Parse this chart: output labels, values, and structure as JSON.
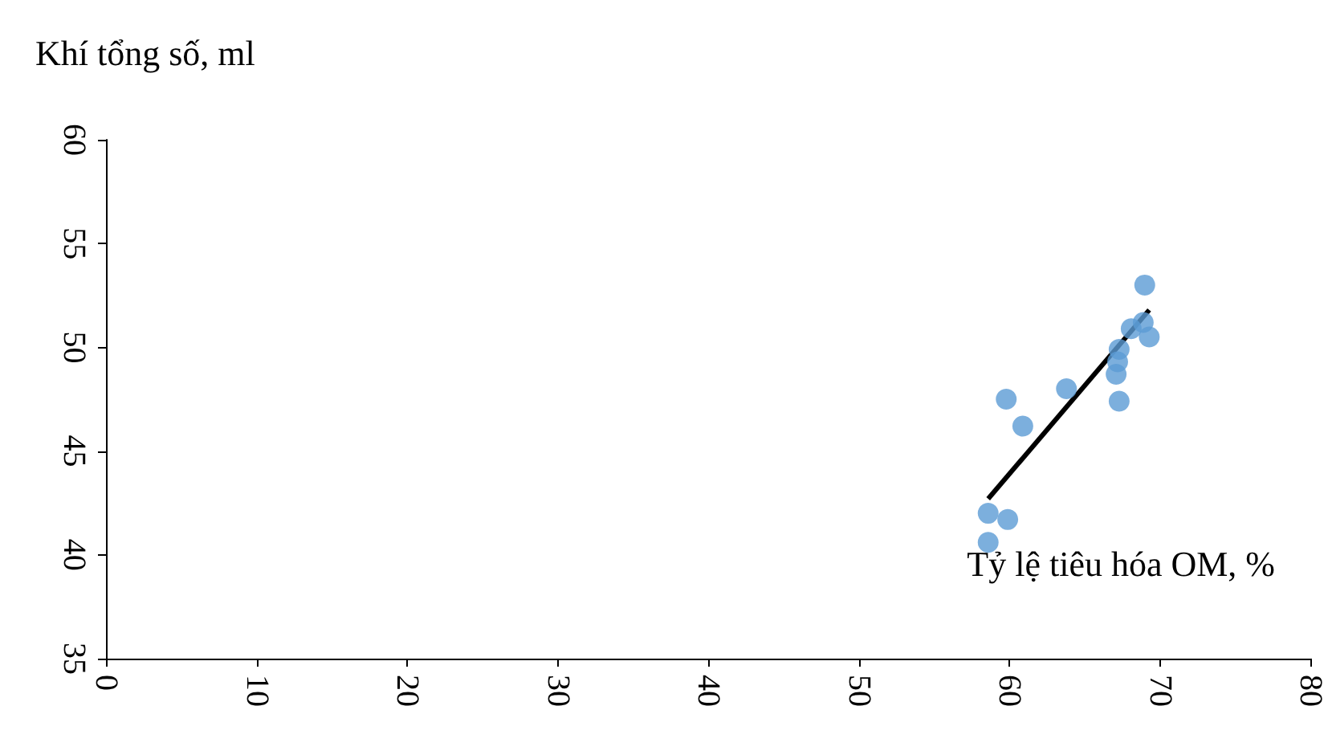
{
  "chart_data": {
    "type": "scatter",
    "xlabel": "Tỷ lệ tiêu hóa OM, %",
    "ylabel": "Khí tổng số, ml",
    "xlim": [
      0,
      80
    ],
    "xticks": [
      0,
      10,
      20,
      30,
      40,
      50,
      60,
      70,
      80
    ],
    "ylim": [
      35,
      60
    ],
    "yticks": [
      35,
      40,
      45,
      50,
      55,
      60
    ],
    "grid": false,
    "marker": "circle",
    "series": [
      {
        "color": "#5b9bd5",
        "x": [
          69.0,
          68.9,
          68.1,
          69.3,
          67.3,
          67.2,
          67.1,
          67.3,
          63.8,
          59.8,
          60.9,
          58.6,
          59.9,
          58.6
        ],
        "values": [
          53.0,
          51.2,
          50.9,
          50.5,
          49.9,
          49.3,
          48.7,
          47.4,
          48.0,
          47.5,
          46.2,
          42.0,
          41.7,
          40.6
        ]
      },
      {
        "type": "line",
        "color": "#000000",
        "marker": "none",
        "x": [
          58.6,
          69.3
        ],
        "values": [
          42.7,
          51.8
        ]
      }
    ]
  }
}
